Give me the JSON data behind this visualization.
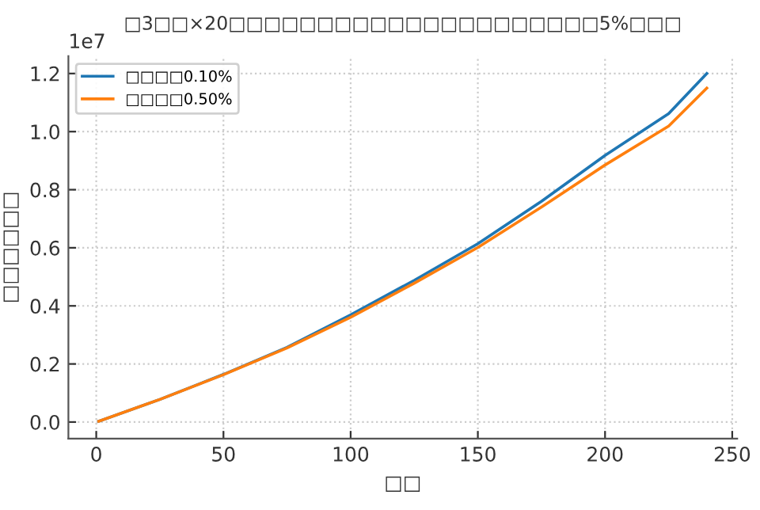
{
  "chart_data": {
    "type": "line",
    "title": "□3□□×20□□□□□□□□□□□□□□□□□□□□□5%□□□",
    "xlabel": "□□",
    "ylabel": "□□□□□□",
    "annotations": [
      "1e7"
    ],
    "x": [
      1,
      25,
      50,
      75,
      100,
      125,
      150,
      175,
      200,
      225,
      240
    ],
    "series": [
      {
        "name": "□□□□0.10%",
        "color": "#1f77b4",
        "values": [
          0.003,
          0.078,
          0.164,
          0.257,
          0.369,
          0.488,
          0.614,
          0.76,
          0.918,
          1.062,
          1.2
        ]
      },
      {
        "name": "□□□□0.50%",
        "color": "#ff7f0e",
        "values": [
          0.003,
          0.078,
          0.163,
          0.255,
          0.361,
          0.478,
          0.601,
          0.74,
          0.885,
          1.019,
          1.15
        ]
      }
    ],
    "xlim": [
      -10.95,
      251.95
    ],
    "xticks": [
      0,
      50,
      100,
      150,
      200,
      250
    ],
    "ylim": [
      -0.057,
      1.26
    ],
    "yticks": [
      {
        "value": 0,
        "label": "0.0"
      },
      0.2,
      0.4,
      0.6,
      0.8,
      {
        "value": 1,
        "label": "1.0"
      },
      1.2
    ],
    "grid": true,
    "legend": "top left",
    "line_style": "solid",
    "marker": "none"
  }
}
